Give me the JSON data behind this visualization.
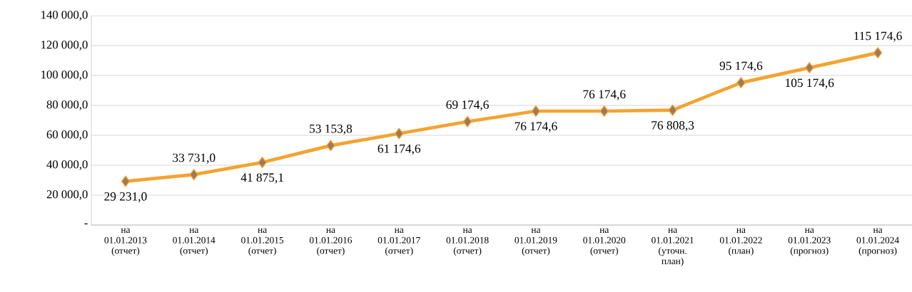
{
  "chart_data": {
    "type": "line",
    "categories": [
      "на 01.01.2013 (отчет)",
      "на 01.01.2014 (отчет)",
      "на 01.01.2015 (отчет)",
      "на 01.01.2016 (отчет)",
      "на 01.01.2017 (отчет)",
      "на 01.01.2018 (отчет)",
      "на 01.01.2019 (отчет)",
      "на 01.01.2020 (отчет)",
      "на 01.01.2021 (уточн. план)",
      "на 01.01.2022 (план)",
      "на 01.01.2023 (прогноз)",
      "на 01.01.2024 (прогноз)"
    ],
    "series": [
      {
        "color": "#f4a331",
        "values": [
          29231.0,
          33731.0,
          41875.1,
          53153.8,
          61174.6,
          69174.6,
          76174.6,
          76174.6,
          76808.3,
          95174.6,
          105174.6,
          115174.6
        ]
      }
    ],
    "value_labels": [
      "29 231,0",
      "33 731,0",
      "41 875,1",
      "53 153,8",
      "61 174,6",
      "69 174,6",
      "76 174,6",
      "76 174,6",
      "76 808,3",
      "95 174,6",
      "105 174,6",
      "115 174,6"
    ],
    "ylim": [
      0,
      140000
    ],
    "yticks": [
      {
        "value": 0,
        "label": "-"
      },
      {
        "value": 20000,
        "label": "20 000,0"
      },
      {
        "value": 40000,
        "label": "40 000,0"
      },
      {
        "value": 60000,
        "label": "60 000,0"
      },
      {
        "value": 80000,
        "label": "80 000,0"
      },
      {
        "value": 100000,
        "label": "100 000,0"
      },
      {
        "value": 120000,
        "label": "120 000,0"
      },
      {
        "value": 140000,
        "label": "140 000,0"
      }
    ],
    "grid": "y",
    "marker": "diamond",
    "line_style": "solid"
  }
}
